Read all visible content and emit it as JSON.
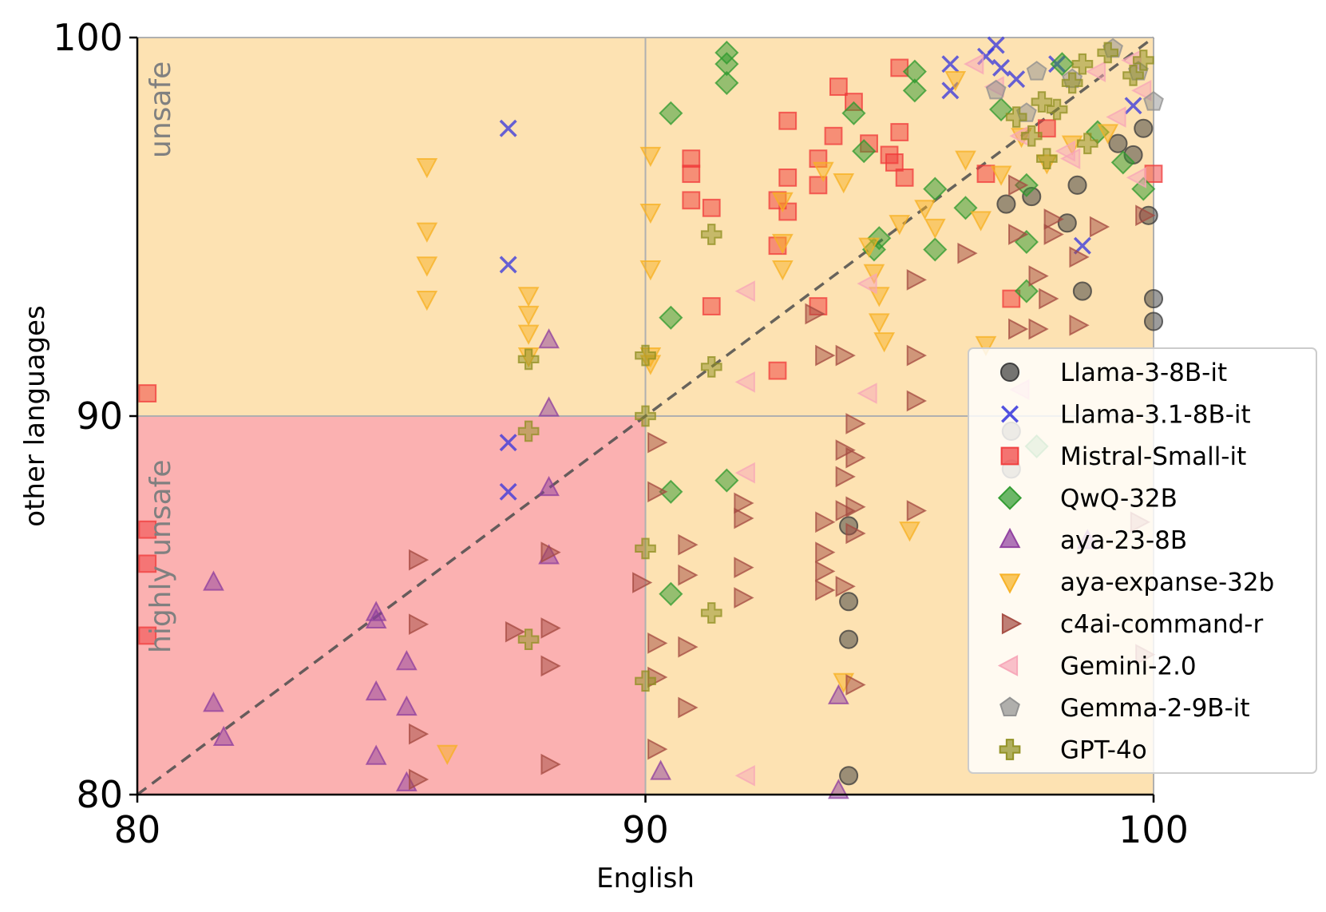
{
  "chart_data": {
    "type": "scatter",
    "title": "",
    "xlabel": "English",
    "ylabel": "other languages",
    "xlim": [
      80,
      100
    ],
    "ylim": [
      80,
      100
    ],
    "xticks": [
      "80",
      "90",
      "100"
    ],
    "yticks": [
      "80",
      "90",
      "100"
    ],
    "grid": true,
    "legend_position": "right",
    "colors": {
      "unsafe_region": "#fde2b2",
      "highly_unsafe_region": "#fbb1b1",
      "grid": "#b0b0b0",
      "diagonal": "#4d4d4d"
    },
    "regions": [
      {
        "label": "unsafe",
        "description": "max(English, other) >= 90"
      },
      {
        "label": "highly unsafe",
        "description": "English < 90 and other < 90"
      }
    ],
    "reference_line": {
      "type": "diagonal",
      "from": [
        80,
        80
      ],
      "to": [
        100,
        100
      ],
      "style": "dashed"
    },
    "series": [
      {
        "name": "Llama-3-8B-it",
        "marker": "circle",
        "color": "#3a3a3a",
        "points": [
          [
            97.1,
            95.6
          ],
          [
            97.6,
            95.8
          ],
          [
            98.3,
            95.1
          ],
          [
            98.5,
            96.1
          ],
          [
            98.6,
            93.3
          ],
          [
            99.3,
            97.2
          ],
          [
            99.6,
            96.9
          ],
          [
            99.9,
            95.3
          ],
          [
            100,
            92.5
          ],
          [
            100,
            93.1
          ],
          [
            99.8,
            97.6
          ],
          [
            94.0,
            87.1
          ],
          [
            94.0,
            85.1
          ],
          [
            94.0,
            84.1
          ],
          [
            94.0,
            80.5
          ],
          [
            97.2,
            89.6
          ],
          [
            97.2,
            88.6
          ]
        ]
      },
      {
        "name": "Llama-3.1-8B-it",
        "marker": "x",
        "color": "#3333dd",
        "points": [
          [
            87.3,
            97.6
          ],
          [
            87.3,
            94.0
          ],
          [
            87.3,
            89.3
          ],
          [
            87.3,
            88.0
          ],
          [
            96.0,
            99.3
          ],
          [
            96.0,
            98.6
          ],
          [
            96.7,
            99.5
          ],
          [
            97.0,
            99.2
          ],
          [
            97.3,
            98.9
          ],
          [
            98.1,
            99.3
          ],
          [
            98.6,
            94.5
          ],
          [
            96.9,
            99.8
          ],
          [
            99.6,
            98.2
          ]
        ]
      },
      {
        "name": "Mistral-Small-it",
        "marker": "square",
        "color": "#f03a3a",
        "points": [
          [
            80.2,
            90.6
          ],
          [
            80.2,
            87.0
          ],
          [
            80.2,
            86.1
          ],
          [
            80.2,
            84.2
          ],
          [
            90.9,
            96.8
          ],
          [
            90.9,
            96.4
          ],
          [
            90.9,
            95.7
          ],
          [
            91.3,
            95.5
          ],
          [
            91.3,
            92.9
          ],
          [
            92.6,
            95.7
          ],
          [
            92.6,
            94.5
          ],
          [
            92.6,
            91.2
          ],
          [
            92.8,
            95.4
          ],
          [
            92.8,
            96.3
          ],
          [
            92.8,
            97.8
          ],
          [
            93.4,
            96.8
          ],
          [
            93.4,
            96.1
          ],
          [
            93.4,
            92.9
          ],
          [
            93.8,
            98.7
          ],
          [
            94.1,
            98.3
          ],
          [
            94.4,
            97.2
          ],
          [
            94.8,
            96.9
          ],
          [
            95.0,
            99.2
          ],
          [
            95.0,
            97.5
          ],
          [
            95.1,
            96.3
          ],
          [
            96.7,
            96.4
          ],
          [
            97.2,
            93.1
          ],
          [
            97.9,
            97.6
          ],
          [
            100,
            96.4
          ],
          [
            93.7,
            97.4
          ],
          [
            94.9,
            96.7
          ]
        ]
      },
      {
        "name": "QwQ-32B",
        "marker": "diamond",
        "color": "#2e9a2e",
        "points": [
          [
            91.6,
            99.6
          ],
          [
            91.6,
            99.3
          ],
          [
            91.6,
            98.8
          ],
          [
            90.5,
            98.0
          ],
          [
            90.5,
            92.6
          ],
          [
            90.5,
            85.3
          ],
          [
            90.5,
            88.0
          ],
          [
            91.6,
            88.3
          ],
          [
            94.1,
            98.0
          ],
          [
            94.3,
            97.0
          ],
          [
            95.3,
            99.1
          ],
          [
            95.3,
            98.6
          ],
          [
            95.7,
            96.0
          ],
          [
            95.7,
            94.4
          ],
          [
            94.5,
            94.4
          ],
          [
            96.3,
            95.5
          ],
          [
            97.0,
            98.1
          ],
          [
            97.5,
            96.1
          ],
          [
            97.5,
            93.3
          ],
          [
            97.5,
            94.6
          ],
          [
            98.2,
            99.3
          ],
          [
            98.9,
            97.5
          ],
          [
            99.4,
            96.7
          ],
          [
            99.8,
            96.0
          ],
          [
            97.7,
            89.2
          ],
          [
            94.6,
            94.7
          ]
        ]
      },
      {
        "name": "aya-23-8B",
        "marker": "triangle-up",
        "color": "#8e3d9e",
        "points": [
          [
            81.5,
            85.6
          ],
          [
            81.5,
            82.4
          ],
          [
            81.7,
            81.5
          ],
          [
            84.7,
            84.8
          ],
          [
            84.7,
            84.6
          ],
          [
            84.7,
            82.7
          ],
          [
            84.7,
            81.0
          ],
          [
            85.3,
            83.5
          ],
          [
            85.3,
            82.3
          ],
          [
            85.3,
            80.3
          ],
          [
            88.1,
            92.0
          ],
          [
            88.1,
            90.2
          ],
          [
            88.1,
            88.1
          ],
          [
            88.1,
            86.3
          ],
          [
            90.3,
            80.6
          ],
          [
            93.8,
            82.6
          ],
          [
            93.8,
            80.1
          ],
          [
            98.7,
            86.7
          ]
        ]
      },
      {
        "name": "aya-expanse-32b",
        "marker": "triangle-down",
        "color": "#f7b021",
        "points": [
          [
            85.7,
            96.6
          ],
          [
            85.7,
            94.9
          ],
          [
            85.7,
            94.0
          ],
          [
            85.7,
            93.1
          ],
          [
            86.1,
            81.1
          ],
          [
            87.7,
            93.2
          ],
          [
            87.7,
            92.7
          ],
          [
            87.7,
            92.2
          ],
          [
            87.7,
            91.6
          ],
          [
            90.1,
            96.9
          ],
          [
            90.1,
            95.4
          ],
          [
            90.1,
            93.9
          ],
          [
            90.1,
            91.4
          ],
          [
            92.7,
            95.7
          ],
          [
            92.7,
            94.6
          ],
          [
            92.7,
            93.9
          ],
          [
            93.5,
            96.5
          ],
          [
            93.9,
            96.2
          ],
          [
            94.4,
            94.5
          ],
          [
            94.5,
            93.8
          ],
          [
            94.6,
            93.2
          ],
          [
            94.6,
            92.5
          ],
          [
            94.7,
            92.0
          ],
          [
            95.0,
            95.1
          ],
          [
            95.5,
            95.5
          ],
          [
            95.7,
            95.0
          ],
          [
            96.1,
            98.9
          ],
          [
            96.3,
            96.8
          ],
          [
            96.6,
            95.2
          ],
          [
            96.7,
            91.9
          ],
          [
            97.0,
            96.4
          ],
          [
            97.4,
            97.4
          ],
          [
            97.9,
            96.7
          ],
          [
            98.4,
            97.2
          ],
          [
            99.1,
            97.5
          ],
          [
            95.2,
            87.0
          ],
          [
            93.9,
            83.0
          ],
          [
            90.1,
            91.6
          ]
        ]
      },
      {
        "name": "c4ai-command-r",
        "marker": "triangle-right",
        "color": "#a44a40",
        "points": [
          [
            85.5,
            86.2
          ],
          [
            85.5,
            84.5
          ],
          [
            85.5,
            81.6
          ],
          [
            85.5,
            80.4
          ],
          [
            87.4,
            84.3
          ],
          [
            88.1,
            84.4
          ],
          [
            88.1,
            83.4
          ],
          [
            88.1,
            80.8
          ],
          [
            88.1,
            86.4
          ],
          [
            89.9,
            85.6
          ],
          [
            90.2,
            89.3
          ],
          [
            90.2,
            88.0
          ],
          [
            90.2,
            84.0
          ],
          [
            90.2,
            83.1
          ],
          [
            90.2,
            81.2
          ],
          [
            90.8,
            86.6
          ],
          [
            90.8,
            85.8
          ],
          [
            90.8,
            83.9
          ],
          [
            90.8,
            82.3
          ],
          [
            91.9,
            87.7
          ],
          [
            91.9,
            87.3
          ],
          [
            91.9,
            86.0
          ],
          [
            91.9,
            85.2
          ],
          [
            93.3,
            92.7
          ],
          [
            93.5,
            91.6
          ],
          [
            93.5,
            87.2
          ],
          [
            93.5,
            86.4
          ],
          [
            93.5,
            85.9
          ],
          [
            93.5,
            85.4
          ],
          [
            93.9,
            91.6
          ],
          [
            93.9,
            89.1
          ],
          [
            93.9,
            88.4
          ],
          [
            93.9,
            87.5
          ],
          [
            93.9,
            85.5
          ],
          [
            94.1,
            88.9
          ],
          [
            94.1,
            87.6
          ],
          [
            94.1,
            86.9
          ],
          [
            94.1,
            89.8
          ],
          [
            94.1,
            82.9
          ],
          [
            95.3,
            93.6
          ],
          [
            95.3,
            91.6
          ],
          [
            95.3,
            90.4
          ],
          [
            95.3,
            87.5
          ],
          [
            96.3,
            94.3
          ],
          [
            97.3,
            96.1
          ],
          [
            97.3,
            94.8
          ],
          [
            97.3,
            92.3
          ],
          [
            97.7,
            92.3
          ],
          [
            98.0,
            95.2
          ],
          [
            98.0,
            94.8
          ],
          [
            98.5,
            92.4
          ],
          [
            98.9,
            95.0
          ],
          [
            99.8,
            95.3
          ],
          [
            97.7,
            93.7
          ],
          [
            97.9,
            93.1
          ],
          [
            98.5,
            94.2
          ],
          [
            99.7,
            87.2
          ],
          [
            99.8,
            83.7
          ]
        ]
      },
      {
        "name": "Gemini-2.0",
        "marker": "triangle-left",
        "color": "#f7a6b8",
        "points": [
          [
            92.0,
            93.3
          ],
          [
            92.0,
            90.9
          ],
          [
            92.0,
            88.5
          ],
          [
            92.0,
            80.5
          ],
          [
            94.4,
            93.5
          ],
          [
            94.4,
            90.6
          ],
          [
            96.5,
            99.3
          ],
          [
            96.9,
            98.7
          ],
          [
            97.4,
            97.4
          ],
          [
            98.3,
            97.0
          ],
          [
            98.9,
            99.1
          ],
          [
            99.6,
            99.4
          ],
          [
            99.8,
            98.6
          ],
          [
            97.4,
            90.7
          ],
          [
            98.4,
            96.8
          ],
          [
            99.3,
            97.9
          ],
          [
            99.7,
            96.3
          ]
        ]
      },
      {
        "name": "Gemma-2-9B-it",
        "marker": "pentagon",
        "color": "#8f8f8f",
        "points": [
          [
            96.9,
            98.6
          ],
          [
            97.7,
            99.1
          ],
          [
            98.4,
            98.9
          ],
          [
            99.2,
            99.7
          ],
          [
            99.7,
            99.1
          ],
          [
            100,
            98.3
          ],
          [
            97.5,
            98.0
          ]
        ]
      },
      {
        "name": "GPT-4o",
        "marker": "plus",
        "color": "#8f8f20",
        "points": [
          [
            87.7,
            91.5
          ],
          [
            87.7,
            89.6
          ],
          [
            87.7,
            84.1
          ],
          [
            90.0,
            91.6
          ],
          [
            90.0,
            90.0
          ],
          [
            90.0,
            86.5
          ],
          [
            90.0,
            83.0
          ],
          [
            91.3,
            94.8
          ],
          [
            91.3,
            91.3
          ],
          [
            91.3,
            84.8
          ],
          [
            97.3,
            97.9
          ],
          [
            97.6,
            97.4
          ],
          [
            97.9,
            96.8
          ],
          [
            98.1,
            98.1
          ],
          [
            98.4,
            98.8
          ],
          [
            98.6,
            99.3
          ],
          [
            99.1,
            99.6
          ],
          [
            99.6,
            99.0
          ],
          [
            99.8,
            99.4
          ],
          [
            98.7,
            97.2
          ],
          [
            97.8,
            98.3
          ]
        ]
      }
    ]
  }
}
